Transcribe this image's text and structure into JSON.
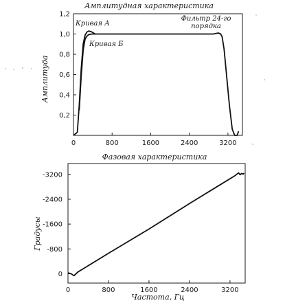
{
  "chart_data": [
    {
      "type": "line",
      "title": "Амплитудная характеристика",
      "xlabel": "",
      "ylabel": "Амплитуда",
      "xlim": [
        0,
        3500
      ],
      "ylim": [
        0,
        1.2
      ],
      "x_ticks": [
        "0",
        "800",
        "1600",
        "2400",
        "3200"
      ],
      "y_ticks": [
        "0,2",
        "0,4",
        "0,6",
        "0,8",
        "1,0",
        "1,2"
      ],
      "grid": false,
      "annotations": [
        {
          "text": "Кривая А",
          "x": 230,
          "y": 1.1
        },
        {
          "text": "Кривая Б",
          "x": 820,
          "y": 0.88
        },
        {
          "text": "Фильтр 24-го",
          "x": 2850,
          "y": 1.15
        },
        {
          "text": "порядка",
          "x": 2900,
          "y": 1.07
        }
      ],
      "series": [
        {
          "name": "",
          "x": [
            0,
            80,
            120,
            160,
            200,
            240,
            280,
            320,
            380,
            450,
            520,
            600,
            700,
            800,
            1600,
            2400,
            2900,
            3000,
            3050,
            3080,
            3120,
            3170,
            3230,
            3290,
            3340,
            3370,
            3390,
            3420
          ],
          "y": [
            0.0,
            0.03,
            0.3,
            0.65,
            0.9,
            0.99,
            1.02,
            1.03,
            1.02,
            1.0,
            1.0,
            1.0,
            1.0,
            1.0,
            1.0,
            1.0,
            1.0,
            1.01,
            1.0,
            0.97,
            0.85,
            0.6,
            0.3,
            0.06,
            0.0,
            0.0,
            0.0,
            0.04
          ]
        },
        {
          "name": "",
          "x": [
            120,
            160,
            200,
            240,
            280,
            320,
            380,
            450
          ],
          "y": [
            0.25,
            0.58,
            0.84,
            0.95,
            0.98,
            0.995,
            1.0,
            1.0
          ]
        }
      ]
    },
    {
      "type": "line",
      "title": "Фазовая характеристика",
      "xlabel": "Частота, Гц",
      "ylabel": "Градусы",
      "xlim": [
        0,
        3500
      ],
      "ylim": [
        -300,
        3550
      ],
      "y_inverted_labels": true,
      "x_ticks": [
        "0",
        "800",
        "1600",
        "2400",
        "3200"
      ],
      "y_ticks": [
        "0",
        "-800",
        "-1600",
        "-2400",
        "-3200"
      ],
      "grid": false,
      "series": [
        {
          "name": "",
          "x": [
            0,
            60,
            120,
            200,
            400,
            800,
            1600,
            2400,
            3000,
            3300,
            3370,
            3400,
            3430,
            3460,
            3480
          ],
          "y": [
            30,
            0,
            -60,
            60,
            260,
            660,
            1440,
            2260,
            2860,
            3160,
            3250,
            3190,
            3230,
            3210,
            3240
          ]
        }
      ]
    }
  ]
}
